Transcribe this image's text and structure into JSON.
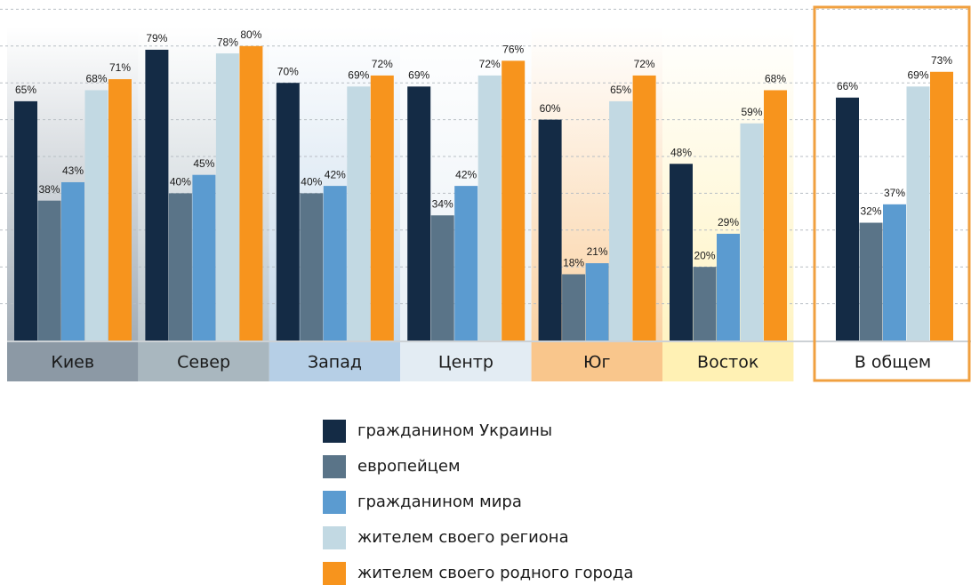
{
  "chart_data": {
    "type": "bar",
    "categories": [
      "Киев",
      "Север",
      "Запад",
      "Центр",
      "Юг",
      "Восток",
      "В общем"
    ],
    "category_colors": [
      "#8c99a5",
      "#a9b7bf",
      "#b6cfe6",
      "#e3ecf3",
      "#f9c68c",
      "#fff1b4",
      "#ffffff"
    ],
    "highlight_color": "#f0a040",
    "series": [
      {
        "name": "гражданином Украины",
        "color": "#142b45",
        "values": [
          65,
          79,
          70,
          69,
          60,
          48,
          66
        ],
        "value_labels": [
          "65%",
          "79%",
          "70%",
          "69%",
          "60%",
          "48%",
          "66%"
        ]
      },
      {
        "name": "европейцем",
        "color": "#5a7488",
        "values": [
          38,
          40,
          40,
          34,
          18,
          20,
          32
        ],
        "value_labels": [
          "38%",
          "40%",
          "40%",
          "34%",
          "18%",
          "20%",
          "32%"
        ]
      },
      {
        "name": "гражданином мира",
        "color": "#5b9bd0",
        "values": [
          43,
          45,
          42,
          42,
          21,
          29,
          37
        ],
        "value_labels": [
          "43%",
          "45%",
          "42%",
          "42%",
          "21%",
          "29%",
          "37%"
        ]
      },
      {
        "name": "жителем своего региона",
        "color": "#c2d9e3",
        "values": [
          68,
          78,
          69,
          72,
          65,
          59,
          69
        ],
        "value_labels": [
          "68%",
          "78%",
          "69%",
          "72%",
          "65%",
          "59%",
          "69%"
        ]
      },
      {
        "name": "жителем своего родного города",
        "color": "#f7941d",
        "values": [
          71,
          80,
          72,
          76,
          72,
          68,
          73
        ],
        "value_labels": [
          "71%",
          "80%",
          "72%",
          "76%",
          "72%",
          "68%",
          "73%"
        ]
      }
    ],
    "ylim": [
      0,
      92
    ],
    "yticks": [
      10,
      20,
      30,
      40,
      50,
      60,
      70,
      80,
      90
    ],
    "grid": true,
    "legend": "bottom"
  }
}
